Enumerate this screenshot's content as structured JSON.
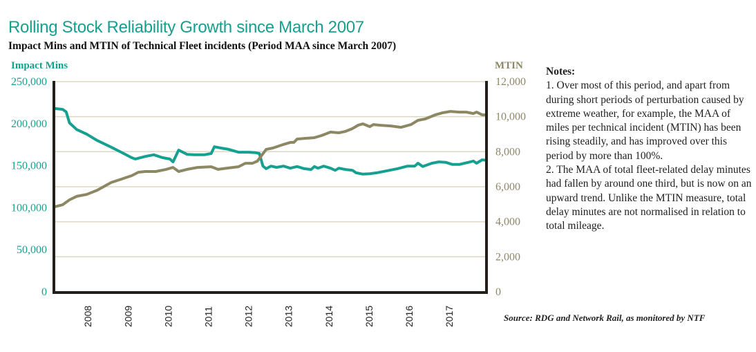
{
  "header": {
    "title": "Rolling Stock Reliability Growth since March 2007",
    "subtitle": "Impact Mins and MTIN of Technical Fleet incidents (Period MAA since March 2007)"
  },
  "notes": {
    "heading": "Notes:",
    "items": [
      "1. Over most of this period, and apart from during short periods of perturbation caused by extreme weather, for example, the MAA of miles per technical incident (MTIN) has been rising steadily, and has improved over this period by more than 100%.",
      "2. The MAA of total fleet-related delay minutes had fallen by around one third, but is now on an upward trend. Unlike the MTIN measure, total delay minutes are not normalised in relation to total mileage."
    ]
  },
  "source": "Source: RDG and Network Rail, as monitored by NTF",
  "colors": {
    "impact_mins": "#16a08f",
    "mtin": "#8c8863",
    "grid": "#dcd9c6",
    "axis": "#231f1a"
  },
  "chart_data": {
    "type": "line",
    "title": "Rolling Stock Reliability Growth since March 2007",
    "subtitle": "Impact Mins and MTIN of Technical Fleet incidents (Period MAA since March 2007)",
    "xlabel": "",
    "ylabel_left": "Impact Mins",
    "ylabel_right": "MTIN",
    "xlim": [
      2007.17,
      2017.91
    ],
    "ylim_left": [
      0,
      250000
    ],
    "ylim_right": [
      0,
      12000
    ],
    "x_ticks": [
      "2008",
      "2009",
      "2010",
      "2011",
      "2012",
      "2013",
      "2014",
      "2015",
      "2016",
      "2017"
    ],
    "y_ticks_left": [
      "0",
      "50,000",
      "100,000",
      "150,000",
      "200,000",
      "250,000"
    ],
    "y_ticks_right": [
      "0",
      "2,000",
      "4,000",
      "6,000",
      "8,000",
      "10,000",
      "12,000"
    ],
    "grid": true,
    "legend": "axis titles (left: Impact Mins, right: MTIN)",
    "series": [
      {
        "name": "Impact Mins",
        "axis": "left",
        "x": [
          2007.17,
          2007.37,
          2007.46,
          2007.54,
          2007.72,
          2007.97,
          2008.23,
          2008.58,
          2008.83,
          2009.09,
          2009.18,
          2009.43,
          2009.64,
          2009.86,
          2010.04,
          2010.12,
          2010.26,
          2010.47,
          2010.64,
          2010.9,
          2011.07,
          2011.15,
          2011.32,
          2011.5,
          2011.75,
          2012.01,
          2012.18,
          2012.27,
          2012.36,
          2012.44,
          2012.56,
          2012.7,
          2012.87,
          2013.04,
          2013.21,
          2013.39,
          2013.56,
          2013.64,
          2013.73,
          2013.87,
          2014.04,
          2014.16,
          2014.25,
          2014.42,
          2014.59,
          2014.68,
          2014.85,
          2015.02,
          2015.19,
          2015.45,
          2015.71,
          2015.96,
          2016.14,
          2016.22,
          2016.34,
          2016.57,
          2016.74,
          2016.91,
          2017.08,
          2017.25,
          2017.48,
          2017.6,
          2017.68,
          2017.82,
          2017.91
        ],
        "values": [
          218000,
          217000,
          214000,
          201000,
          193000,
          187500,
          180000,
          172000,
          166000,
          159500,
          158000,
          161000,
          163000,
          159500,
          158000,
          154500,
          168500,
          163500,
          163000,
          163000,
          164500,
          172500,
          171000,
          169500,
          166000,
          166000,
          165500,
          164500,
          149500,
          146500,
          149500,
          148000,
          149500,
          147000,
          149000,
          146500,
          145500,
          149000,
          147000,
          149500,
          147000,
          144500,
          147000,
          145500,
          144500,
          141500,
          140000,
          140500,
          141500,
          144000,
          146500,
          149500,
          149500,
          153000,
          149000,
          153000,
          154500,
          154000,
          151500,
          151500,
          154000,
          155500,
          153000,
          157000,
          156500
        ]
      },
      {
        "name": "MTIN",
        "axis": "right",
        "x": [
          2007.17,
          2007.37,
          2007.54,
          2007.72,
          2007.97,
          2008.23,
          2008.58,
          2008.83,
          2009.09,
          2009.26,
          2009.43,
          2009.69,
          2009.95,
          2010.12,
          2010.26,
          2010.47,
          2010.73,
          2011.07,
          2011.24,
          2011.5,
          2011.75,
          2011.92,
          2012.1,
          2012.22,
          2012.44,
          2012.61,
          2012.87,
          2013.04,
          2013.13,
          2013.21,
          2013.39,
          2013.64,
          2013.82,
          2014.04,
          2014.25,
          2014.42,
          2014.59,
          2014.73,
          2014.85,
          2015.02,
          2015.11,
          2015.28,
          2015.54,
          2015.8,
          2016.05,
          2016.22,
          2016.4,
          2016.65,
          2016.83,
          2017.03,
          2017.25,
          2017.42,
          2017.6,
          2017.68,
          2017.82,
          2017.91
        ],
        "values": [
          4850,
          4970,
          5250,
          5450,
          5560,
          5800,
          6240,
          6430,
          6630,
          6830,
          6870,
          6870,
          6990,
          7100,
          6870,
          6990,
          7100,
          7140,
          6990,
          7070,
          7140,
          7340,
          7340,
          7460,
          8130,
          8210,
          8410,
          8530,
          8530,
          8720,
          8760,
          8800,
          8920,
          9120,
          9080,
          9160,
          9320,
          9510,
          9590,
          9430,
          9550,
          9510,
          9470,
          9390,
          9550,
          9790,
          9870,
          10100,
          10220,
          10300,
          10260,
          10260,
          10180,
          10260,
          10100,
          10100
        ]
      }
    ]
  }
}
